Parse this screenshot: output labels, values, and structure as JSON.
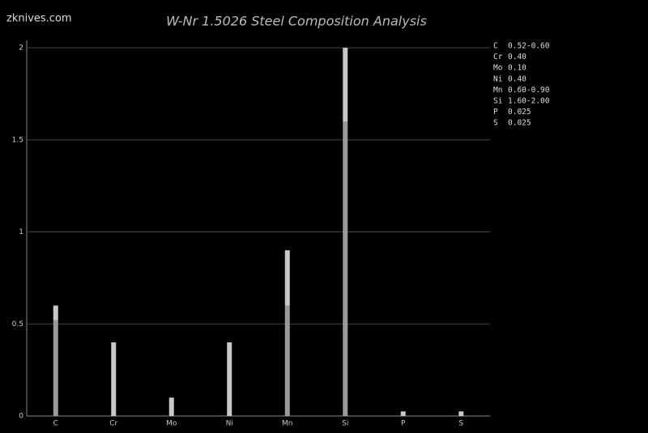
{
  "watermark": "zknives.com",
  "chart_data": {
    "type": "range-bar",
    "title": "W-Nr 1.5026 Steel Composition Analysis",
    "categories": [
      "C",
      "Cr",
      "Mo",
      "Ni",
      "Mn",
      "Si",
      "P",
      "S"
    ],
    "values": [
      [
        0.52,
        0.6
      ],
      [
        0.4
      ],
      [
        0.1
      ],
      [
        0.4
      ],
      [
        0.6,
        0.9
      ],
      [
        1.6,
        2.0
      ],
      [
        0.025
      ],
      [
        0.025
      ]
    ],
    "value_labels": [
      "0.52-0.60",
      "0.40",
      "0.10",
      "0.40",
      "0.60-0.90",
      "1.60-2.00",
      "0.025",
      "0.025"
    ],
    "color": "#9a9a9a",
    "range_color": "#c8c8c8",
    "ylim": [
      0,
      2
    ],
    "yticks": [
      0,
      0.5,
      1,
      1.5,
      2
    ],
    "grid": true
  }
}
